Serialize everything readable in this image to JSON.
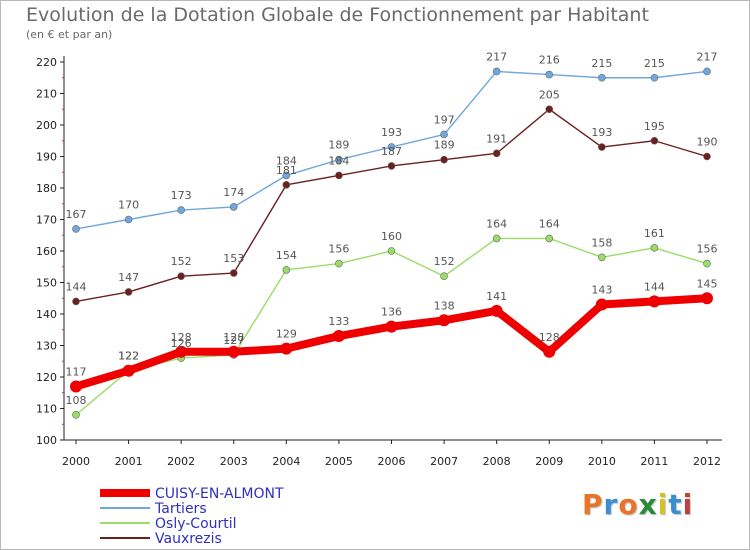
{
  "header": {
    "title": "Evolution de la Dotation Globale de Fonctionnement par Habitant",
    "subtitle": "(en € et par an)"
  },
  "logo": {
    "text": "Proxiti",
    "colors": [
      "#e8742a",
      "#3a8fd0",
      "#e8742a",
      "#2a8a3a",
      "#d8c02a",
      "#3a8fd0",
      "#c04040"
    ]
  },
  "chart_data": {
    "type": "line",
    "x": [
      "2000",
      "2001",
      "2002",
      "2003",
      "2004",
      "2005",
      "2006",
      "2007",
      "2008",
      "2009",
      "2010",
      "2011",
      "2012"
    ],
    "ylim": [
      100,
      220
    ],
    "yticks": [
      100,
      110,
      120,
      130,
      140,
      150,
      160,
      170,
      180,
      190,
      200,
      210,
      220
    ],
    "grid": "none",
    "legend": "bottom-left",
    "series": [
      {
        "name": "CUISY-EN-ALMONT",
        "color": "#ee0000",
        "values": [
          117,
          122,
          128,
          128,
          129,
          133,
          136,
          138,
          141,
          128,
          143,
          144,
          145
        ]
      },
      {
        "name": "Tartiers",
        "color": "#6fa8dc",
        "values": [
          167,
          170,
          173,
          174,
          184,
          189,
          193,
          197,
          217,
          216,
          215,
          215,
          217
        ]
      },
      {
        "name": "Osly-Courtil",
        "color": "#99dd66",
        "values": [
          108,
          122,
          126,
          127,
          154,
          156,
          160,
          152,
          164,
          164,
          158,
          161,
          156
        ]
      },
      {
        "name": "Vauxrezis",
        "color": "#6b1f1f",
        "values": [
          144,
          147,
          152,
          153,
          181,
          184,
          187,
          189,
          191,
          205,
          193,
          195,
          190
        ]
      }
    ]
  }
}
